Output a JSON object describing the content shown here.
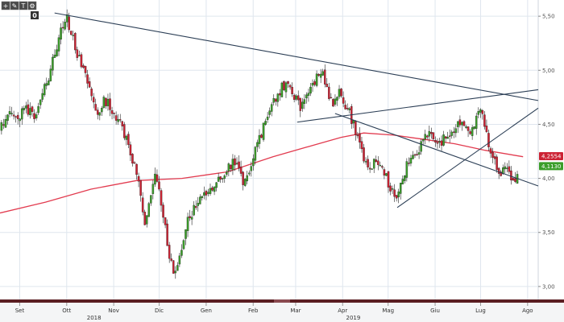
{
  "toolbar": {
    "buttons": [
      {
        "name": "zoom-in-button",
        "icon": "plus-icon",
        "glyph": "+"
      },
      {
        "name": "draw-tool-button",
        "icon": "pencil-icon",
        "glyph": "✎"
      },
      {
        "name": "text-tool-button",
        "icon": "text-icon",
        "glyph": "T"
      },
      {
        "name": "settings-button",
        "icon": "gear-icon",
        "glyph": "⚙"
      }
    ],
    "counter": "0"
  },
  "chart_data": {
    "type": "candlestick",
    "y_axis": {
      "ticks": [
        "3,00",
        "3,50",
        "4,00",
        "4,50",
        "5,00",
        "5,50"
      ],
      "ylim": [
        2.88,
        5.65
      ],
      "side": "right"
    },
    "x_axis": {
      "months": [
        {
          "label": "Set",
          "day": 13
        },
        {
          "label": "Ott",
          "day": 44
        },
        {
          "label": "Nov",
          "day": 75
        },
        {
          "label": "Dic",
          "day": 105
        },
        {
          "label": "Gen",
          "day": 136
        },
        {
          "label": "Feb",
          "day": 167
        },
        {
          "label": "Mar",
          "day": 195
        },
        {
          "label": "Apr",
          "day": 226
        },
        {
          "label": "Mag",
          "day": 256
        },
        {
          "label": "Giu",
          "day": 287
        },
        {
          "label": "Lug",
          "day": 317
        },
        {
          "label": "Ago",
          "day": 348
        }
      ],
      "years": [
        {
          "label": "2018",
          "day": 62
        },
        {
          "label": "2019",
          "day": 233
        }
      ],
      "xlim": [
        0,
        355
      ]
    },
    "series_close": [
      [
        0,
        4.45
      ],
      [
        4,
        4.55
      ],
      [
        8,
        4.6
      ],
      [
        12,
        4.52
      ],
      [
        16,
        4.65
      ],
      [
        20,
        4.62
      ],
      [
        24,
        4.58
      ],
      [
        28,
        4.82
      ],
      [
        32,
        4.92
      ],
      [
        36,
        5.15
      ],
      [
        40,
        5.35
      ],
      [
        44,
        5.48
      ],
      [
        48,
        5.32
      ],
      [
        52,
        5.1
      ],
      [
        56,
        4.95
      ],
      [
        60,
        4.78
      ],
      [
        64,
        4.6
      ],
      [
        68,
        4.72
      ],
      [
        72,
        4.68
      ],
      [
        76,
        4.58
      ],
      [
        80,
        4.48
      ],
      [
        84,
        4.35
      ],
      [
        88,
        4.15
      ],
      [
        92,
        3.98
      ],
      [
        94,
        3.75
      ],
      [
        96,
        3.55
      ],
      [
        98,
        3.75
      ],
      [
        100,
        3.9
      ],
      [
        102,
        4.05
      ],
      [
        104,
        4.0
      ],
      [
        106,
        3.8
      ],
      [
        108,
        3.6
      ],
      [
        110,
        3.45
      ],
      [
        112,
        3.28
      ],
      [
        114,
        3.18
      ],
      [
        116,
        3.12
      ],
      [
        118,
        3.22
      ],
      [
        120,
        3.4
      ],
      [
        124,
        3.6
      ],
      [
        128,
        3.72
      ],
      [
        132,
        3.82
      ],
      [
        136,
        3.88
      ],
      [
        140,
        3.9
      ],
      [
        144,
        4.0
      ],
      [
        148,
        4.05
      ],
      [
        152,
        4.1
      ],
      [
        156,
        4.18
      ],
      [
        160,
        3.95
      ],
      [
        164,
        4.05
      ],
      [
        168,
        4.25
      ],
      [
        172,
        4.4
      ],
      [
        176,
        4.55
      ],
      [
        180,
        4.72
      ],
      [
        184,
        4.8
      ],
      [
        188,
        4.88
      ],
      [
        192,
        4.85
      ],
      [
        196,
        4.7
      ],
      [
        200,
        4.65
      ],
      [
        204,
        4.82
      ],
      [
        208,
        4.92
      ],
      [
        212,
        5.0
      ],
      [
        216,
        4.8
      ],
      [
        220,
        4.7
      ],
      [
        224,
        4.8
      ],
      [
        228,
        4.68
      ],
      [
        232,
        4.55
      ],
      [
        236,
        4.35
      ],
      [
        240,
        4.18
      ],
      [
        244,
        4.1
      ],
      [
        248,
        4.15
      ],
      [
        252,
        4.12
      ],
      [
        256,
        3.95
      ],
      [
        260,
        3.85
      ],
      [
        262,
        3.8
      ],
      [
        266,
        4.0
      ],
      [
        270,
        4.2
      ],
      [
        274,
        4.25
      ],
      [
        278,
        4.3
      ],
      [
        282,
        4.42
      ],
      [
        286,
        4.38
      ],
      [
        290,
        4.32
      ],
      [
        294,
        4.4
      ],
      [
        298,
        4.45
      ],
      [
        302,
        4.52
      ],
      [
        306,
        4.5
      ],
      [
        310,
        4.42
      ],
      [
        314,
        4.55
      ],
      [
        318,
        4.65
      ],
      [
        322,
        4.3
      ],
      [
        326,
        4.18
      ],
      [
        330,
        4.05
      ],
      [
        334,
        4.1
      ],
      [
        338,
        4.0
      ],
      [
        340,
        3.95
      ],
      [
        342,
        4.06
      ]
    ],
    "series_ma": [
      [
        0,
        3.68
      ],
      [
        30,
        3.78
      ],
      [
        60,
        3.9
      ],
      [
        90,
        3.98
      ],
      [
        120,
        4.0
      ],
      [
        150,
        4.06
      ],
      [
        180,
        4.2
      ],
      [
        210,
        4.32
      ],
      [
        225,
        4.38
      ],
      [
        240,
        4.42
      ],
      [
        260,
        4.4
      ],
      [
        280,
        4.36
      ],
      [
        300,
        4.32
      ],
      [
        320,
        4.26
      ],
      [
        345,
        4.2
      ]
    ],
    "trendlines": [
      [
        [
          36,
          5.53
        ],
        [
          355,
          4.72
        ]
      ],
      [
        [
          196,
          4.52
        ],
        [
          355,
          4.82
        ]
      ],
      [
        [
          221,
          4.6
        ],
        [
          355,
          3.93
        ]
      ],
      [
        [
          262,
          3.73
        ],
        [
          355,
          4.65
        ]
      ]
    ],
    "labels": [
      {
        "text": "4,2554",
        "y": 4.205,
        "color": "#cc2233"
      },
      {
        "text": "4,1130",
        "y": 4.113,
        "color": "#3b9e2a"
      }
    ],
    "colors": {
      "up": "#3b9e2a",
      "down": "#cc2233",
      "ma": "#e23b4f",
      "trend": "#2b3e55",
      "grid": "#dfe6ee",
      "bottom_bar": "#5a1e22"
    }
  }
}
